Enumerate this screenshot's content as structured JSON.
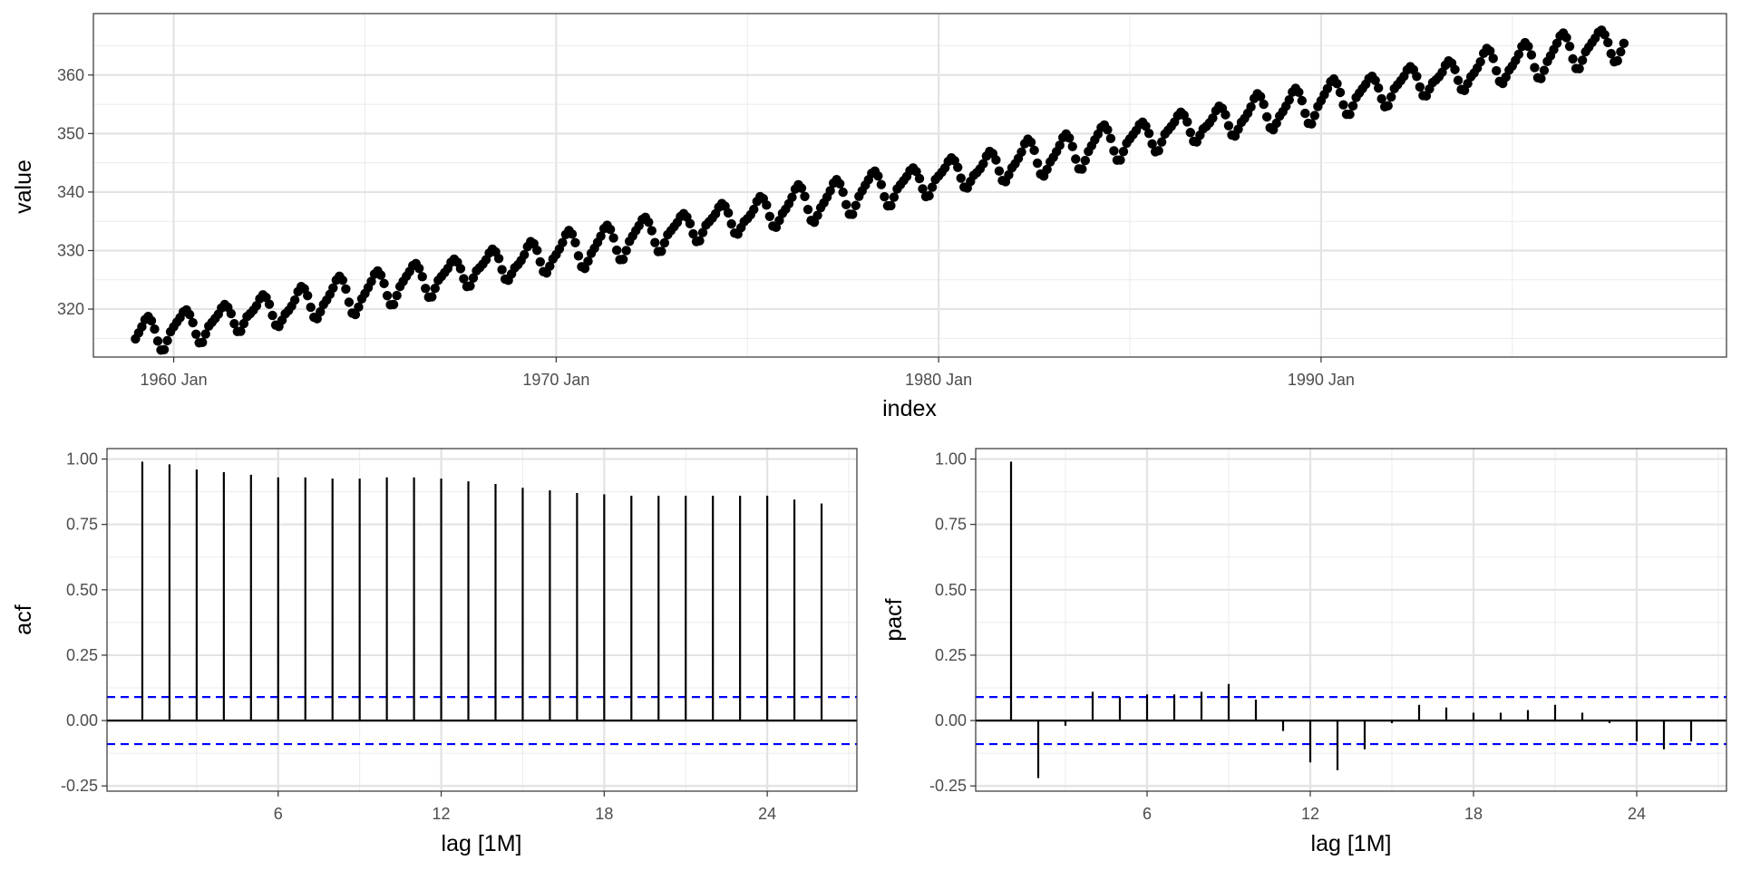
{
  "chart_data": [
    {
      "type": "scatter",
      "name": "time-series",
      "xlabel": "index",
      "ylabel": "value",
      "x_unit": "month",
      "x_start": "1959 Jan",
      "x_end": "1997 Dec",
      "x_ticks": [
        {
          "value": 1960,
          "label": "1960 Jan"
        },
        {
          "value": 1970,
          "label": "1970 Jan"
        },
        {
          "value": 1980,
          "label": "1980 Jan"
        },
        {
          "value": 1990,
          "label": "1990 Jan"
        }
      ],
      "xlim": [
        1957.9,
        2000.6
      ],
      "ylim": [
        311.8,
        370.5
      ],
      "y_ticks": [
        320,
        330,
        340,
        350,
        360
      ],
      "trend_start": 315.3,
      "trend_slope_per_year": 1.3,
      "seasonal_offsets": [
        -0.2,
        0.5,
        1.3,
        2.4,
        2.9,
        2.2,
        0.8,
        -1.3,
        -3.0,
        -3.2,
        -2.0,
        -0.8
      ],
      "point_color": "#000000",
      "grid": true
    },
    {
      "type": "bar",
      "name": "acf",
      "xlabel": "lag [1M]",
      "ylabel": "acf",
      "lags": [
        1,
        2,
        3,
        4,
        5,
        6,
        7,
        8,
        9,
        10,
        11,
        12,
        13,
        14,
        15,
        16,
        17,
        18,
        19,
        20,
        21,
        22,
        23,
        24,
        25,
        26
      ],
      "values": [
        0.99,
        0.98,
        0.96,
        0.95,
        0.94,
        0.93,
        0.93,
        0.925,
        0.925,
        0.93,
        0.93,
        0.925,
        0.915,
        0.905,
        0.89,
        0.88,
        0.87,
        0.865,
        0.86,
        0.86,
        0.86,
        0.86,
        0.86,
        0.86,
        0.845,
        0.83
      ],
      "x_ticks": [
        6,
        12,
        18,
        24
      ],
      "y_ticks": [
        -0.25,
        0,
        0.25,
        0.5,
        0.75,
        1
      ],
      "y_tick_labels": [
        "-0.25",
        "0.00",
        "0.25",
        "0.50",
        "0.75",
        "1.00"
      ],
      "xlim": [
        -0.3,
        27.3
      ],
      "ylim": [
        -0.27,
        1.04
      ],
      "confidence_bound": 0.09,
      "bound_color": "#0000ff",
      "grid": true
    },
    {
      "type": "bar",
      "name": "pacf",
      "xlabel": "lag [1M]",
      "ylabel": "pacf",
      "lags": [
        1,
        2,
        3,
        4,
        5,
        6,
        7,
        8,
        9,
        10,
        11,
        12,
        13,
        14,
        15,
        16,
        17,
        18,
        19,
        20,
        21,
        22,
        23,
        24,
        25,
        26
      ],
      "values": [
        0.99,
        -0.22,
        -0.02,
        0.11,
        0.09,
        0.1,
        0.1,
        0.11,
        0.14,
        0.08,
        -0.04,
        -0.16,
        -0.19,
        -0.11,
        -0.01,
        0.06,
        0.05,
        0.03,
        0.03,
        0.04,
        0.06,
        0.03,
        -0.01,
        -0.08,
        -0.11,
        -0.08
      ],
      "x_ticks": [
        6,
        12,
        18,
        24
      ],
      "y_ticks": [
        -0.25,
        0,
        0.25,
        0.5,
        0.75,
        1
      ],
      "y_tick_labels": [
        "-0.25",
        "0.00",
        "0.25",
        "0.50",
        "0.75",
        "1.00"
      ],
      "xlim": [
        -0.3,
        27.3
      ],
      "ylim": [
        -0.27,
        1.04
      ],
      "confidence_bound": 0.09,
      "bound_color": "#0000ff",
      "grid": true
    }
  ]
}
